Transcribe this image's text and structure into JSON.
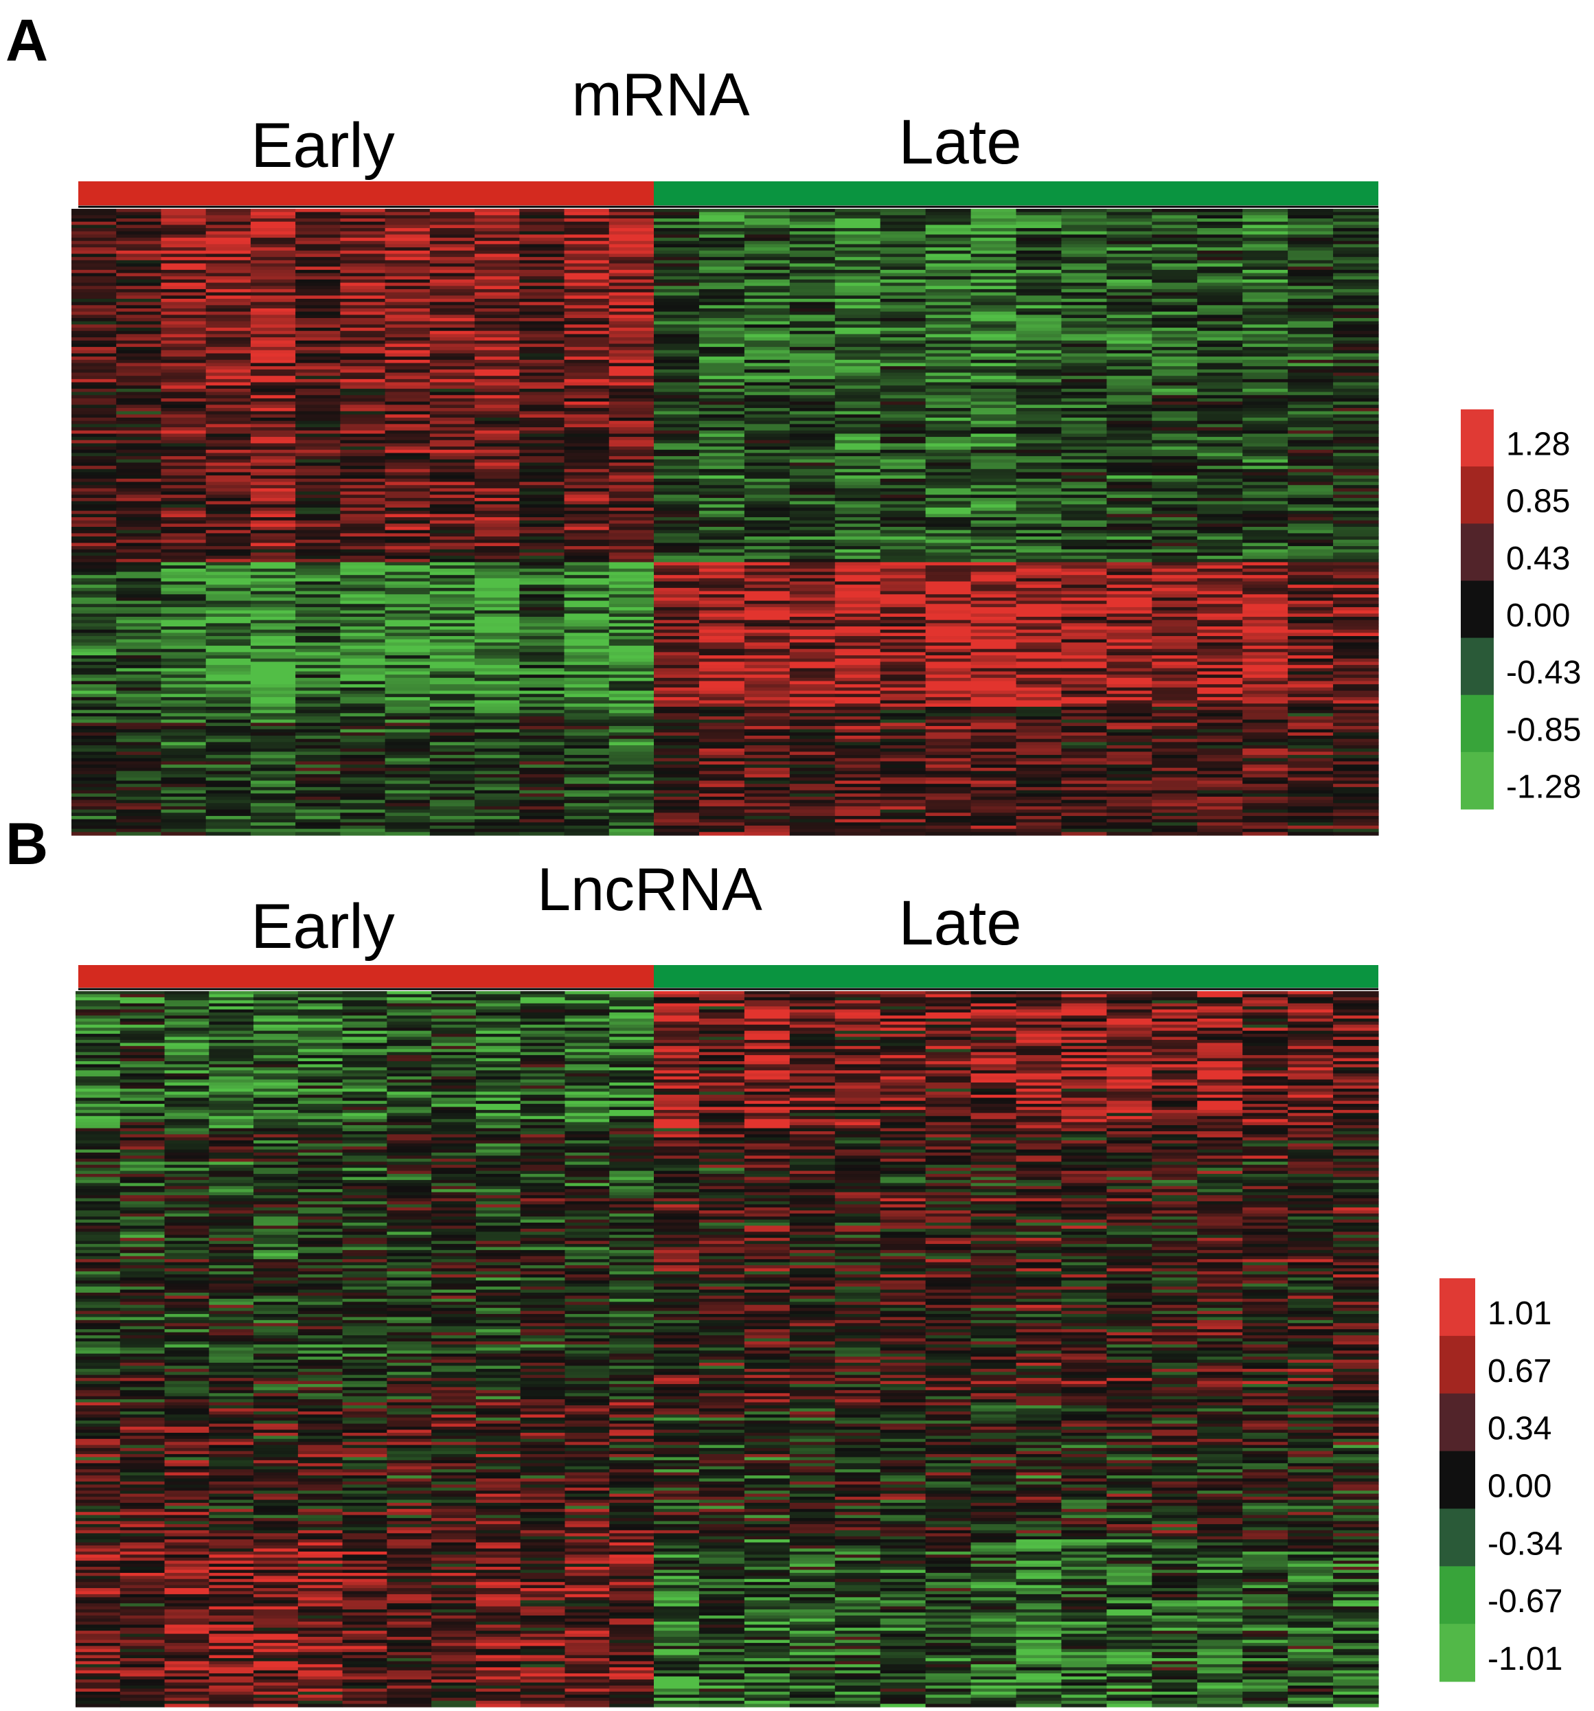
{
  "colors": {
    "early_bar": "#d42a1f",
    "late_bar": "#0a9440",
    "legend_a": [
      "#e03a34",
      "#a32620",
      "#52242a",
      "#101010",
      "#2a5a38",
      "#38a43a",
      "#52b848"
    ],
    "legend_b": [
      "#e03a34",
      "#a32620",
      "#52242a",
      "#101010",
      "#2a5a38",
      "#38a43a",
      "#52b848"
    ]
  },
  "chart_data": [
    {
      "type": "heatmap",
      "panel_label": "A",
      "title": "mRNA",
      "group_labels": [
        "Early",
        "Late"
      ],
      "groups": [
        {
          "name": "Early",
          "n_columns": 13
        },
        {
          "name": "Late",
          "n_columns": 16
        }
      ],
      "color_scale": {
        "ticks": [
          "1.28",
          "0.85",
          "0.43",
          "0.00",
          "-0.43",
          "-0.85",
          "-1.28"
        ],
        "min": -1.28,
        "max": 1.28
      },
      "row_blocks": [
        {
          "rows": 55,
          "early": 0.75,
          "late": -0.6
        },
        {
          "rows": 55,
          "early": 0.45,
          "late": -0.5
        },
        {
          "rows": 45,
          "early": -0.95,
          "late": 1.0
        },
        {
          "rows": 40,
          "early": -0.35,
          "late": 0.35
        }
      ]
    },
    {
      "type": "heatmap",
      "panel_label": "B",
      "title": "LncRNA",
      "group_labels": [
        "Early",
        "Late"
      ],
      "groups": [
        {
          "name": "Early",
          "n_columns": 13
        },
        {
          "name": "Late",
          "n_columns": 16
        }
      ],
      "color_scale": {
        "ticks": [
          "1.01",
          "0.67",
          "0.34",
          "0.00",
          "-0.34",
          "-0.67",
          "-1.01"
        ],
        "min": -1.01,
        "max": 1.01
      },
      "row_blocks": [
        {
          "rows": 45,
          "early": -0.55,
          "late": 0.55
        },
        {
          "rows": 90,
          "early": -0.15,
          "late": 0.15
        },
        {
          "rows": 45,
          "early": 0.15,
          "late": -0.05
        },
        {
          "rows": 55,
          "early": 0.45,
          "late": -0.45
        }
      ]
    }
  ]
}
